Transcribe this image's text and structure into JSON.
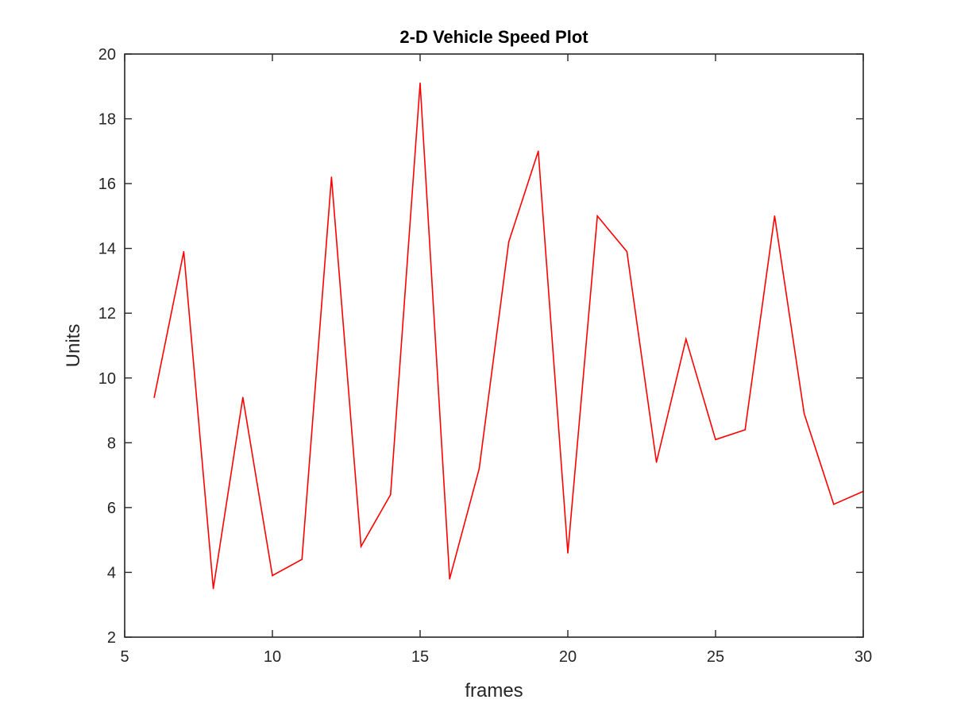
{
  "chart_data": {
    "type": "line",
    "title": "2-D Vehicle Speed Plot",
    "xlabel": "frames",
    "ylabel": "Units",
    "xlim": [
      5,
      30
    ],
    "ylim": [
      2,
      20
    ],
    "xticks": [
      5,
      10,
      15,
      20,
      25,
      30
    ],
    "yticks": [
      2,
      4,
      6,
      8,
      10,
      12,
      14,
      16,
      18,
      20
    ],
    "grid": false,
    "legend": "none",
    "line_color": "#ff0000",
    "axis_color": "#262626",
    "x": [
      6,
      7,
      8,
      9,
      10,
      11,
      12,
      13,
      14,
      15,
      16,
      17,
      18,
      19,
      20,
      21,
      22,
      23,
      24,
      25,
      26,
      27,
      28,
      29,
      30
    ],
    "series": [
      {
        "values": [
          9.4,
          13.9,
          3.5,
          9.4,
          3.9,
          4.4,
          16.2,
          4.8,
          6.4,
          19.1,
          3.8,
          7.2,
          14.2,
          17.0,
          4.6,
          15.0,
          13.9,
          7.4,
          11.2,
          8.1,
          8.4,
          15.0,
          8.9,
          6.1,
          6.5
        ]
      }
    ]
  }
}
